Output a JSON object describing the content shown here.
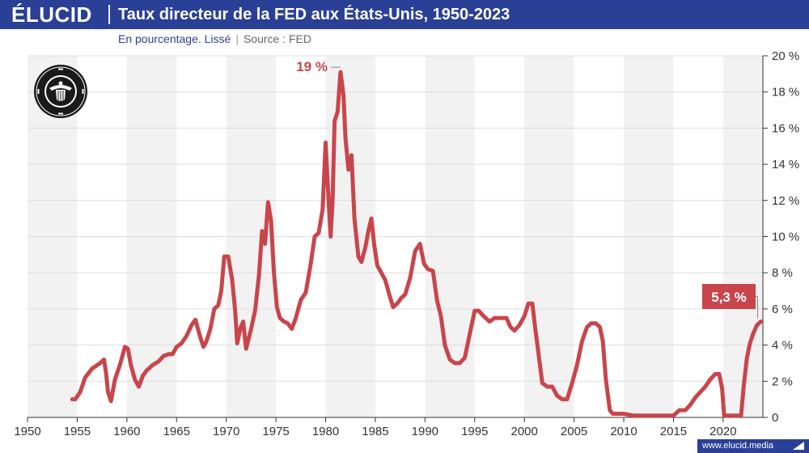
{
  "header": {
    "logo": "ÉLUCID",
    "title": "Taux directeur de la FED aux États-Unis, 1950-2023"
  },
  "subtitle": {
    "text": "En pourcentage. Lissé",
    "separator": "|",
    "source": "Source : FED"
  },
  "footer": {
    "site": "www.elucid.media"
  },
  "seal": {
    "icon": "federal-reserve-seal-icon",
    "text": "UNITED STATES FEDERAL RESERVE SYSTEM"
  },
  "colors": {
    "brand": "#2a3f96",
    "line": "#c9454b",
    "band": "#f2f2f2",
    "grid": "#dddddd"
  },
  "chart_data": {
    "type": "line",
    "title": "Taux directeur de la FED aux États-Unis, 1950-2023",
    "subtitle": "En pourcentage. Lissé",
    "xlabel": "",
    "ylabel": "",
    "xlim": [
      1950,
      2024
    ],
    "ylim": [
      0,
      20
    ],
    "x_ticks": [
      1950,
      1955,
      1960,
      1965,
      1970,
      1975,
      1980,
      1985,
      1990,
      1995,
      2000,
      2005,
      2010,
      2015,
      2020
    ],
    "y_ticks": [
      0,
      2,
      4,
      6,
      8,
      10,
      12,
      14,
      16,
      18,
      20
    ],
    "y_tick_labels": [
      "0",
      "2 %",
      "4 %",
      "6 %",
      "8 %",
      "10 %",
      "12 %",
      "14 %",
      "16 %",
      "18 %",
      "20 %"
    ],
    "grid": "horizontal",
    "background_bands": "alternating 5-year",
    "annotations": [
      {
        "label": "19 %",
        "x": 1981.5,
        "y": 19.1
      },
      {
        "label": "5,3 %",
        "x": 2023.8,
        "y": 6.7
      }
    ],
    "series": [
      {
        "name": "",
        "x": [
          1954.5,
          1954.8,
          1955.3,
          1955.8,
          1956.5,
          1957.3,
          1957.7,
          1957.9,
          1958.1,
          1958.4,
          1958.8,
          1959.3,
          1959.8,
          1960.1,
          1960.4,
          1960.8,
          1961.2,
          1961.6,
          1962.0,
          1962.6,
          1963.2,
          1963.7,
          1964.2,
          1964.6,
          1965.0,
          1965.5,
          1966.0,
          1966.5,
          1966.9,
          1967.3,
          1967.7,
          1968.0,
          1968.4,
          1968.8,
          1969.2,
          1969.5,
          1969.8,
          1970.2,
          1970.6,
          1970.9,
          1971.1,
          1971.4,
          1971.7,
          1972.0,
          1972.5,
          1972.9,
          1973.3,
          1973.6,
          1973.9,
          1974.2,
          1974.5,
          1974.8,
          1975.1,
          1975.4,
          1975.8,
          1976.2,
          1976.6,
          1977.0,
          1977.5,
          1978.0,
          1978.5,
          1978.9,
          1979.3,
          1979.7,
          1980.0,
          1980.3,
          1980.5,
          1980.7,
          1980.9,
          1981.2,
          1981.5,
          1981.8,
          1982.0,
          1982.3,
          1982.6,
          1982.9,
          1983.3,
          1983.6,
          1984.0,
          1984.3,
          1984.6,
          1984.9,
          1985.2,
          1985.6,
          1986.0,
          1986.4,
          1986.8,
          1987.2,
          1987.6,
          1988.0,
          1988.5,
          1989.0,
          1989.5,
          1989.9,
          1990.3,
          1990.8,
          1991.2,
          1991.6,
          1992.0,
          1992.5,
          1993.0,
          1993.5,
          1994.0,
          1994.5,
          1995.0,
          1995.4,
          1995.9,
          1996.5,
          1997.0,
          1997.6,
          1998.2,
          1998.6,
          1999.0,
          1999.5,
          2000.0,
          2000.4,
          2000.8,
          2001.1,
          2001.5,
          2001.8,
          2002.3,
          2002.8,
          2003.3,
          2003.8,
          2004.3,
          2004.8,
          2005.3,
          2005.8,
          2006.3,
          2006.7,
          2007.2,
          2007.6,
          2007.9,
          2008.2,
          2008.6,
          2008.9,
          2009.3,
          2010.0,
          2011.0,
          2012.0,
          2013.0,
          2014.0,
          2015.0,
          2015.6,
          2016.2,
          2016.7,
          2017.2,
          2017.7,
          2018.2,
          2018.7,
          2019.2,
          2019.6,
          2019.9,
          2020.1,
          2020.3,
          2021.0,
          2021.8,
          2022.1,
          2022.4,
          2022.7,
          2023.0,
          2023.4,
          2023.8
        ],
        "y": [
          1.0,
          1.0,
          1.4,
          2.2,
          2.7,
          3.0,
          3.2,
          2.5,
          1.4,
          0.9,
          2.1,
          2.9,
          3.9,
          3.8,
          2.9,
          2.1,
          1.7,
          2.3,
          2.6,
          2.9,
          3.1,
          3.4,
          3.5,
          3.5,
          3.9,
          4.1,
          4.5,
          5.1,
          5.4,
          4.6,
          3.9,
          4.2,
          4.9,
          6.0,
          6.2,
          7.0,
          8.9,
          8.9,
          7.6,
          5.9,
          4.1,
          4.9,
          5.3,
          3.8,
          4.9,
          5.9,
          7.9,
          10.3,
          9.6,
          11.9,
          10.9,
          8.0,
          6.1,
          5.5,
          5.3,
          5.2,
          4.9,
          5.5,
          6.5,
          6.9,
          8.5,
          10.0,
          10.2,
          11.5,
          15.2,
          12.0,
          10.0,
          12.0,
          16.4,
          16.9,
          19.1,
          17.8,
          15.4,
          13.7,
          14.5,
          11.0,
          8.9,
          8.6,
          9.4,
          10.3,
          11.0,
          9.5,
          8.4,
          8.0,
          7.6,
          6.8,
          6.1,
          6.3,
          6.6,
          6.8,
          7.7,
          9.2,
          9.6,
          8.5,
          8.2,
          8.1,
          6.5,
          5.6,
          4.0,
          3.2,
          3.0,
          3.0,
          3.3,
          4.6,
          5.9,
          5.9,
          5.6,
          5.3,
          5.5,
          5.5,
          5.5,
          5.0,
          4.8,
          5.1,
          5.6,
          6.3,
          6.3,
          4.9,
          3.2,
          1.9,
          1.7,
          1.7,
          1.2,
          1.0,
          1.0,
          1.9,
          2.9,
          4.2,
          5.0,
          5.2,
          5.2,
          5.0,
          4.2,
          2.1,
          0.4,
          0.2,
          0.2,
          0.2,
          0.1,
          0.1,
          0.1,
          0.1,
          0.1,
          0.4,
          0.4,
          0.7,
          1.1,
          1.4,
          1.7,
          2.1,
          2.4,
          2.4,
          1.6,
          0.1,
          0.1,
          0.1,
          0.1,
          1.9,
          3.3,
          4.1,
          4.6,
          5.1,
          5.3
        ]
      }
    ]
  }
}
